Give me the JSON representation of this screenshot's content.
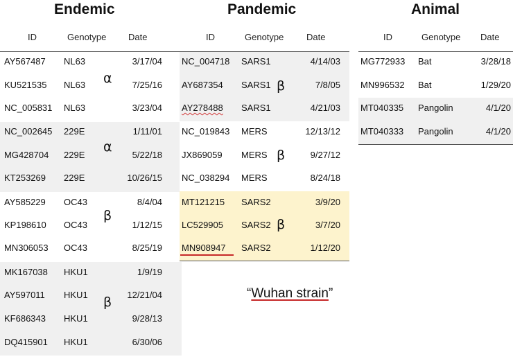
{
  "endemic": {
    "title": "Endemic",
    "headers": [
      "ID",
      "Genotype",
      "Date"
    ],
    "rows": [
      {
        "id": "AY567487",
        "genotype": "NL63",
        "date": "3/17/04"
      },
      {
        "id": "KU521535",
        "genotype": "NL63",
        "date": "7/25/16"
      },
      {
        "id": "NC_005831",
        "genotype": "NL63",
        "date": "3/23/04"
      },
      {
        "id": "NC_002645",
        "genotype": "229E",
        "date": "1/11/01"
      },
      {
        "id": "MG428704",
        "genotype": "229E",
        "date": "5/22/18"
      },
      {
        "id": "KT253269",
        "genotype": "229E",
        "date": "10/26/15"
      },
      {
        "id": "AY585229",
        "genotype": "OC43",
        "date": "8/4/04"
      },
      {
        "id": "KP198610",
        "genotype": "OC43",
        "date": "1/12/15"
      },
      {
        "id": "MN306053",
        "genotype": "OC43",
        "date": "8/25/19"
      },
      {
        "id": "MK167038",
        "genotype": "HKU1",
        "date": "1/9/19"
      },
      {
        "id": "AY597011",
        "genotype": "HKU1",
        "date": "12/21/04"
      },
      {
        "id": "KF686343",
        "genotype": "HKU1",
        "date": "9/28/13"
      },
      {
        "id": "DQ415901",
        "genotype": "HKU1",
        "date": "6/30/06"
      }
    ],
    "greek": [
      "α",
      "α",
      "β",
      "β"
    ]
  },
  "pandemic": {
    "title": "Pandemic",
    "headers": [
      "ID",
      "Genotype",
      "Date"
    ],
    "rows": [
      {
        "id": "NC_004718",
        "genotype": "SARS1",
        "date": "4/14/03"
      },
      {
        "id": "AY687354",
        "genotype": "SARS1",
        "date": "7/8/05"
      },
      {
        "id": "AY278488",
        "genotype": "SARS1",
        "date": "4/21/03"
      },
      {
        "id": "NC_019843",
        "genotype": "MERS",
        "date": "12/13/12"
      },
      {
        "id": "JX869059",
        "genotype": "MERS",
        "date": "9/27/12"
      },
      {
        "id": "NC_038294",
        "genotype": "MERS",
        "date": "8/24/18"
      },
      {
        "id": "MT121215",
        "genotype": "SARS2",
        "date": "3/9/20"
      },
      {
        "id": "LC529905",
        "genotype": "SARS2",
        "date": "3/7/20"
      },
      {
        "id": "MN908947",
        "genotype": "SARS2",
        "date": "1/12/20"
      }
    ],
    "greek": [
      "β",
      "β",
      "β"
    ],
    "highlight_color": "#fdf3cd"
  },
  "animal": {
    "title": "Animal",
    "headers": [
      "ID",
      "Genotype",
      "Date"
    ],
    "rows": [
      {
        "id": "MG772933",
        "genotype": "Bat",
        "date": "3/28/18"
      },
      {
        "id": "MN996532",
        "genotype": "Bat",
        "date": "1/29/20"
      },
      {
        "id": "MT040335",
        "genotype": "Pangolin",
        "date": "4/1/20"
      },
      {
        "id": "MT040333",
        "genotype": "Pangolin",
        "date": "4/1/20"
      }
    ]
  },
  "annotation": {
    "open_quote": "“",
    "text": "Wuhan strain",
    "close_quote": "”"
  },
  "colors": {
    "band_gray": "#f0f0f0",
    "band_yellow": "#fdf3cd",
    "accent_red": "#c62828"
  }
}
